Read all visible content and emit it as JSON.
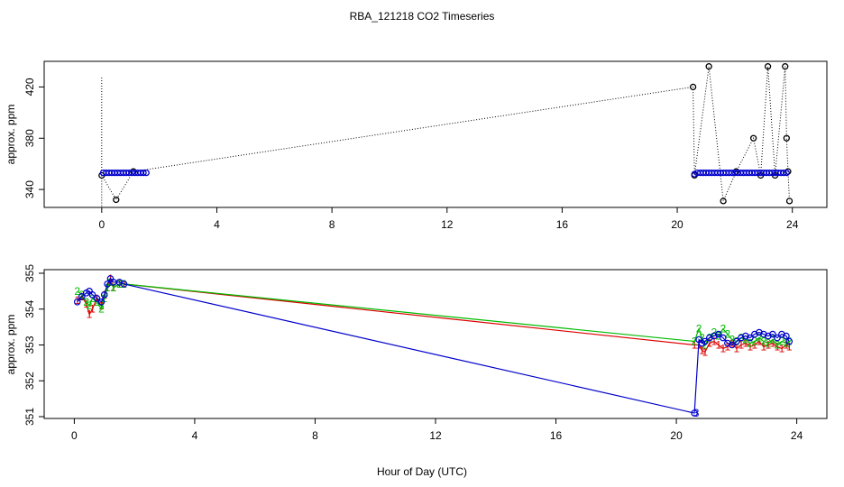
{
  "title": "RBA_121218  CO2 Timeseries",
  "xlabel": "Hour of Day (UTC)",
  "colors": {
    "black": "#000000",
    "blue": "#0000cc",
    "red": "#dd0000",
    "green": "#00bb00"
  },
  "chart_data": [
    {
      "type": "scatter",
      "panel": "top",
      "ylabel": "approx. ppm",
      "xlim": [
        -2,
        25.2
      ],
      "ylim": [
        326,
        440
      ],
      "xticks": [
        "0",
        "4",
        "8",
        "12",
        "16",
        "20",
        "24"
      ],
      "yticks": [
        "340",
        "380",
        "420"
      ],
      "series": [
        {
          "marker": "o",
          "color": "black",
          "line": "dotted",
          "x": [
            0.0,
            0.5,
            1.1,
            20.55,
            20.6,
            21.1,
            21.6,
            22.05,
            22.65,
            22.9,
            23.15,
            23.4,
            23.75,
            23.8,
            23.85,
            23.9
          ],
          "y": [
            351,
            332,
            354,
            420,
            351,
            436,
            331,
            354,
            380,
            351,
            436,
            351,
            436,
            380,
            354,
            331
          ]
        },
        {
          "marker": "o",
          "color": "blue",
          "line": "none",
          "x": [
            0.05,
            0.15,
            0.25,
            0.35,
            0.45,
            0.55,
            0.65,
            0.75,
            0.85,
            0.95,
            1.05,
            1.15,
            1.25,
            1.35,
            1.45,
            1.55,
            20.6,
            20.7,
            20.8,
            20.9,
            21.0,
            21.1,
            21.2,
            21.3,
            21.4,
            21.5,
            21.6,
            21.7,
            21.8,
            21.9,
            22.0,
            22.1,
            22.2,
            22.3,
            22.4,
            22.5,
            22.6,
            22.7,
            22.8,
            22.9,
            23.0,
            23.1,
            23.2,
            23.3,
            23.4,
            23.5,
            23.6,
            23.7,
            23.8
          ],
          "y": [
            353,
            353,
            353,
            353,
            353,
            353,
            353,
            353,
            353,
            353,
            353,
            353,
            353,
            353,
            353,
            353,
            352,
            353,
            353,
            353,
            353,
            353,
            353,
            353,
            353,
            353,
            353,
            353,
            353,
            353,
            353,
            353,
            353,
            353,
            353,
            353,
            353,
            353,
            353,
            353,
            353,
            353,
            353,
            353,
            353,
            353,
            353,
            353,
            353
          ]
        }
      ]
    },
    {
      "type": "line",
      "panel": "bottom",
      "ylabel": "approx. ppm",
      "xlim": [
        -1.0,
        25.0
      ],
      "ylim": [
        350.95,
        355.1
      ],
      "xticks": [
        "0",
        "4",
        "8",
        "12",
        "16",
        "20",
        "24"
      ],
      "yticks": [
        "351",
        "352",
        "353",
        "354",
        "355"
      ],
      "series": [
        {
          "name": "1",
          "color": "red",
          "x": [
            0.1,
            0.25,
            0.4,
            0.5,
            0.6,
            0.75,
            0.9,
            1.0,
            1.1,
            1.2,
            1.3,
            1.5,
            1.65,
            20.6,
            20.75,
            20.85,
            20.95,
            21.1,
            21.25,
            21.4,
            21.55,
            21.7,
            21.85,
            22.0,
            22.15,
            22.3,
            22.45,
            22.6,
            22.75,
            22.9,
            23.05,
            23.2,
            23.35,
            23.5,
            23.65,
            23.75
          ],
          "y": [
            354.25,
            354.35,
            354.15,
            353.85,
            354.0,
            354.3,
            354.1,
            354.4,
            354.6,
            354.85,
            354.6,
            354.7,
            354.7,
            353.0,
            353.0,
            352.85,
            352.8,
            353.05,
            353.1,
            353.0,
            352.9,
            352.95,
            353.05,
            352.9,
            353.0,
            353.05,
            352.95,
            353.0,
            353.1,
            352.95,
            353.0,
            353.05,
            352.95,
            352.9,
            353.0,
            352.95
          ]
        },
        {
          "name": "2",
          "color": "green",
          "x": [
            0.1,
            0.25,
            0.4,
            0.5,
            0.6,
            0.75,
            0.9,
            1.0,
            1.1,
            1.2,
            1.3,
            1.5,
            1.65,
            20.6,
            20.75,
            20.85,
            20.95,
            21.1,
            21.25,
            21.4,
            21.55,
            21.7,
            21.85,
            22.0,
            22.15,
            22.3,
            22.45,
            22.6,
            22.75,
            22.9,
            23.05,
            23.2,
            23.35,
            23.5,
            23.65,
            23.75
          ],
          "y": [
            354.5,
            354.4,
            354.2,
            354.1,
            354.3,
            354.2,
            354.0,
            354.3,
            354.6,
            354.75,
            354.6,
            354.7,
            354.7,
            353.1,
            353.45,
            353.2,
            353.0,
            353.2,
            353.35,
            353.25,
            353.45,
            353.3,
            353.15,
            353.1,
            353.2,
            353.15,
            353.05,
            353.1,
            353.2,
            353.1,
            353.05,
            353.15,
            353.0,
            353.1,
            353.05,
            353.1
          ]
        },
        {
          "name": "3",
          "color": "blue",
          "x": [
            0.1,
            0.25,
            0.4,
            0.5,
            0.6,
            0.75,
            0.9,
            1.0,
            1.1,
            1.2,
            1.3,
            1.5,
            1.65,
            20.6,
            20.75,
            20.85,
            20.95,
            21.1,
            21.25,
            21.4,
            21.55,
            21.7,
            21.85,
            22.0,
            22.15,
            22.3,
            22.45,
            22.6,
            22.75,
            22.9,
            23.05,
            23.2,
            23.35,
            23.5,
            23.65,
            23.75
          ],
          "y": [
            354.2,
            354.35,
            354.45,
            354.5,
            354.4,
            354.3,
            354.2,
            354.4,
            354.7,
            354.85,
            354.75,
            354.75,
            354.7,
            351.1,
            353.15,
            353.05,
            353.1,
            353.2,
            353.25,
            353.3,
            353.2,
            353.05,
            353.0,
            353.1,
            353.2,
            353.25,
            353.2,
            353.3,
            353.35,
            353.3,
            353.25,
            353.3,
            353.2,
            353.3,
            353.25,
            353.1
          ]
        }
      ]
    }
  ]
}
